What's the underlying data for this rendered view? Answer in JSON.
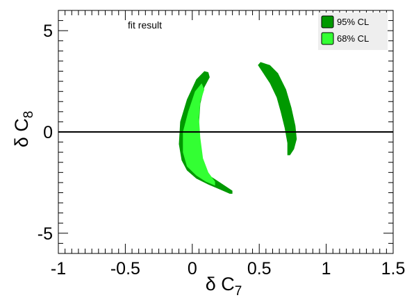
{
  "chart_data": {
    "type": "area",
    "title": "",
    "annotation": "fit result",
    "xlabel": {
      "symbol": "δ C",
      "subscript": "7"
    },
    "ylabel": {
      "symbol": "δ C",
      "subscript": "8"
    },
    "xlim": [
      -1,
      1.5
    ],
    "ylim": [
      -6,
      6
    ],
    "x_ticks": [
      {
        "value": -1,
        "label": "-1"
      },
      {
        "value": -0.5,
        "label": "-0.5"
      },
      {
        "value": 0,
        "label": "0"
      },
      {
        "value": 0.5,
        "label": "0.5"
      },
      {
        "value": 1,
        "label": "1"
      },
      {
        "value": 1.5,
        "label": "1.5"
      }
    ],
    "y_ticks": [
      {
        "value": -5,
        "label": "-5"
      },
      {
        "value": 0,
        "label": "0"
      },
      {
        "value": 5,
        "label": "5"
      }
    ],
    "reference_line_y": 0,
    "grid": false,
    "legend_position": "top-right",
    "series": [
      {
        "name": "95% CL",
        "color": "#009900",
        "regions": [
          [
            [
              0.09,
              3.0
            ],
            [
              0.03,
              2.6
            ],
            [
              -0.04,
              1.6
            ],
            [
              -0.09,
              0.5
            ],
            [
              -0.1,
              -0.6
            ],
            [
              -0.08,
              -1.4
            ],
            [
              -0.04,
              -1.9
            ],
            [
              0.03,
              -2.3
            ],
            [
              0.12,
              -2.6
            ],
            [
              0.21,
              -2.85
            ],
            [
              0.28,
              -3.05
            ],
            [
              0.3,
              -3.05
            ],
            [
              0.3,
              -2.9
            ],
            [
              0.22,
              -2.55
            ],
            [
              0.14,
              -2.2
            ],
            [
              0.07,
              -1.6
            ],
            [
              0.05,
              -0.6
            ],
            [
              0.05,
              0.4
            ],
            [
              0.06,
              1.4
            ],
            [
              0.09,
              2.2
            ],
            [
              0.13,
              2.7
            ],
            [
              0.12,
              2.95
            ],
            [
              0.09,
              3.0
            ]
          ],
          [
            [
              0.51,
              3.45
            ],
            [
              0.58,
              3.3
            ],
            [
              0.64,
              2.9
            ],
            [
              0.7,
              2.1
            ],
            [
              0.74,
              1.2
            ],
            [
              0.77,
              0.3
            ],
            [
              0.78,
              -0.35
            ],
            [
              0.76,
              -0.85
            ],
            [
              0.73,
              -1.15
            ],
            [
              0.71,
              -1.15
            ],
            [
              0.71,
              -0.55
            ],
            [
              0.69,
              0.2
            ],
            [
              0.66,
              1.0
            ],
            [
              0.63,
              1.7
            ],
            [
              0.58,
              2.4
            ],
            [
              0.53,
              2.9
            ],
            [
              0.49,
              3.3
            ],
            [
              0.51,
              3.45
            ]
          ]
        ]
      },
      {
        "name": "68% CL",
        "color": "#33ff33",
        "regions": [
          [
            [
              0.07,
              2.4
            ],
            [
              0.02,
              2.0
            ],
            [
              -0.03,
              1.0
            ],
            [
              -0.07,
              0.0
            ],
            [
              -0.07,
              -1.0
            ],
            [
              -0.04,
              -1.7
            ],
            [
              0.03,
              -2.15
            ],
            [
              0.1,
              -2.45
            ],
            [
              0.17,
              -2.65
            ],
            [
              0.17,
              -2.45
            ],
            [
              0.12,
              -2.0
            ],
            [
              0.08,
              -1.3
            ],
            [
              0.06,
              -0.3
            ],
            [
              0.05,
              0.7
            ],
            [
              0.06,
              1.5
            ],
            [
              0.09,
              2.1
            ],
            [
              0.07,
              2.4
            ]
          ]
        ]
      }
    ]
  }
}
